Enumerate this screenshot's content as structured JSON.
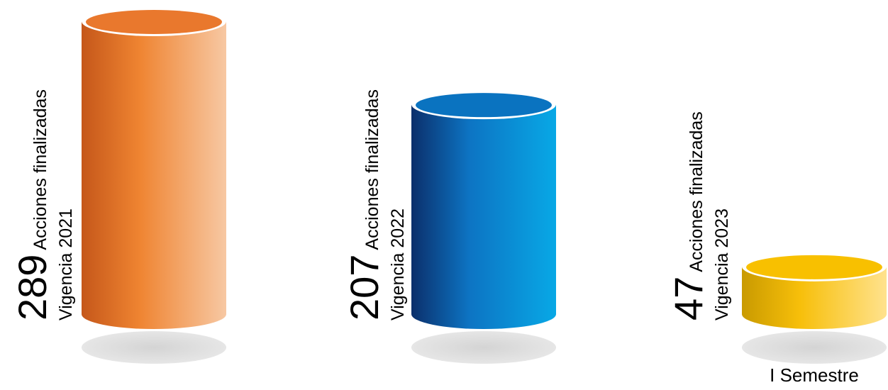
{
  "chart_data": {
    "type": "bar",
    "bar_style": "3d-cylinder",
    "unit_label": "Acciones finalizadas",
    "series": [
      {
        "category": "Vigencia 2021",
        "value": 289,
        "value_label": "289",
        "color_dark": "#c5571a",
        "color_mid": "#ef8431",
        "color_light": "#f7c8a3",
        "color_top": "#e9782d"
      },
      {
        "category": "Vigencia 2022",
        "value": 207,
        "value_label": "207",
        "color_dark": "#0b2f6b",
        "color_mid": "#0d74c3",
        "color_light": "#08a8e6",
        "color_top": "#0a73c0"
      },
      {
        "category": "Vigencia 2023",
        "value": 47,
        "value_label": "47",
        "color_dark": "#c99a00",
        "color_mid": "#f7bf0a",
        "color_light": "#ffe28d",
        "color_top": "#f8c000"
      }
    ],
    "annotation": "I Semestre",
    "ylim": [
      0,
      289
    ]
  }
}
